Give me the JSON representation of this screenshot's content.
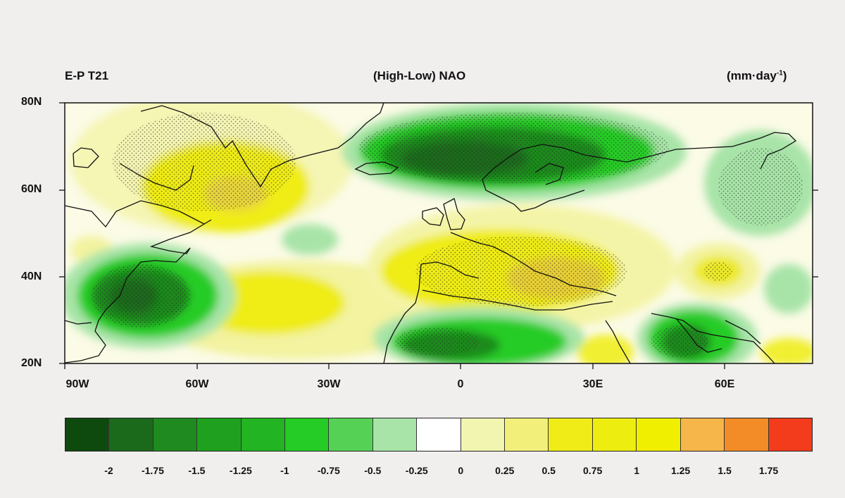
{
  "header": {
    "left": "E-P  T21",
    "center": "(High-Low) NAO",
    "unit": "(mm·day",
    "unit_sup": "-1",
    "unit_close": ")"
  },
  "lat_labels": [
    "80N",
    "60N",
    "40N",
    "20N"
  ],
  "lon_labels": [
    "90W",
    "60W",
    "30W",
    "0",
    "30E",
    "60E"
  ],
  "legend": {
    "colors": [
      "#0e4a0e",
      "#1b6a1b",
      "#1f8a1f",
      "#1fa11f",
      "#22b422",
      "#25cc25",
      "#55d255",
      "#a8e4a8",
      "#ffffff",
      "#f2f5b0",
      "#f2f07a",
      "#efec17",
      "#eeed10",
      "#f1ef00",
      "#f6b64a",
      "#f38c27",
      "#f23c1c"
    ],
    "labels": [
      "-2",
      "-1.75",
      "-1.5",
      "-1.25",
      "-1",
      "-0.75",
      "-0.5",
      "-0.25",
      "0",
      "0.25",
      "0.5",
      "0.75",
      "1",
      "1.25",
      "1.5",
      "1.75"
    ]
  }
}
